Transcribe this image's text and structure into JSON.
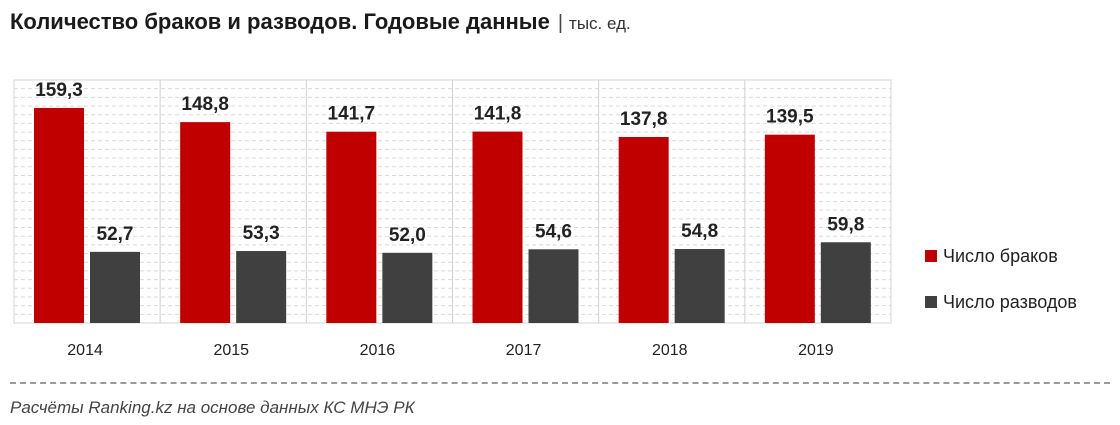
{
  "header": {
    "title": "Количество браков и разводов. Годовые данные",
    "separator": "|",
    "unit": "тыс. ед."
  },
  "chart_data": {
    "type": "bar",
    "categories": [
      "2014",
      "2015",
      "2016",
      "2017",
      "2018",
      "2019"
    ],
    "series": [
      {
        "name": "Число браков",
        "color": "#c00000",
        "values": [
          159.3,
          148.8,
          141.7,
          141.8,
          137.8,
          139.5
        ],
        "labels": [
          "159,3",
          "148,8",
          "141,7",
          "141,8",
          "137,8",
          "139,5"
        ]
      },
      {
        "name": "Число разводов",
        "color": "#404040",
        "values": [
          52.7,
          53.3,
          52.0,
          54.6,
          54.8,
          59.8
        ],
        "labels": [
          "52,7",
          "53,3",
          "52,0",
          "54,6",
          "54,8",
          "59,8"
        ]
      }
    ],
    "ylim": [
      0,
      180
    ],
    "grid": true,
    "legend": "right"
  },
  "footer": {
    "source": "Расчёты Ranking.kz на основе данных КС МНЭ РК"
  }
}
